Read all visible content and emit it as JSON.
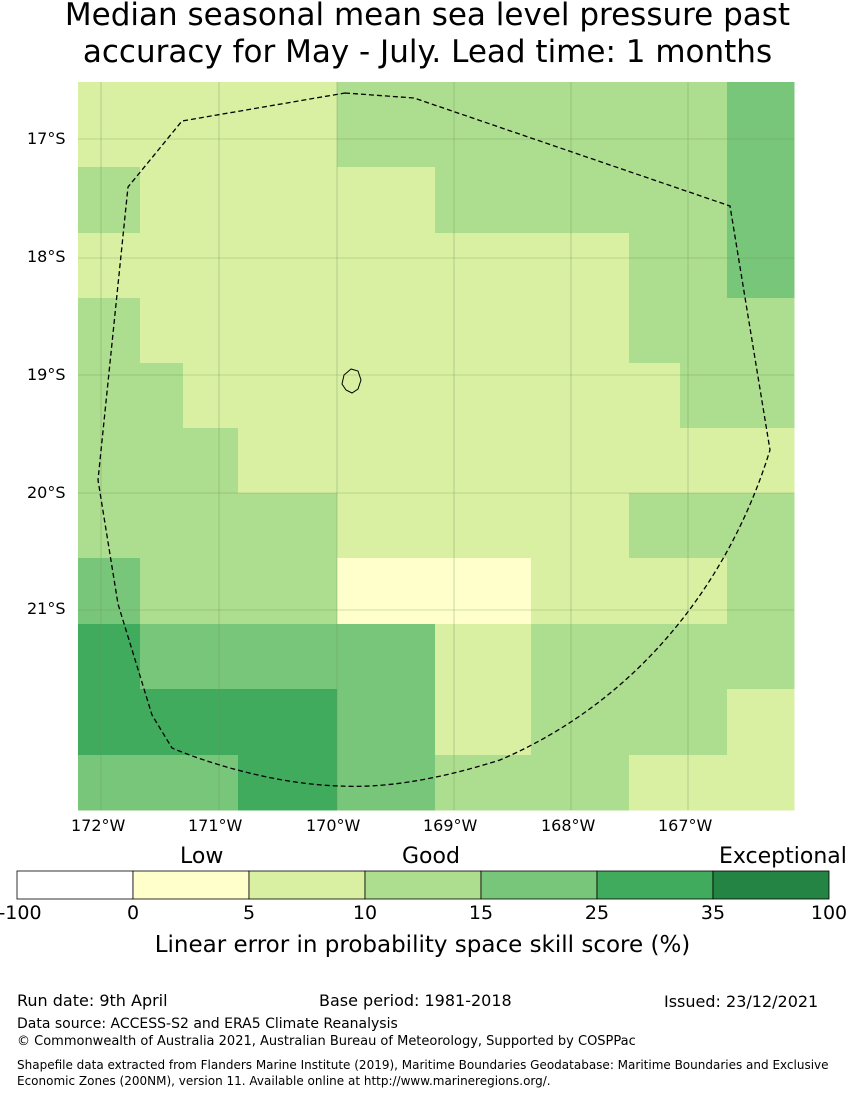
{
  "title": {
    "line1": "Median seasonal mean sea level pressure past",
    "line2": "accuracy for May - July. Lead time: 1 months"
  },
  "map": {
    "lat_labels": [
      "17°S",
      "18°S",
      "19°S",
      "20°S",
      "21°S"
    ],
    "lon_labels": [
      "172°W",
      "171°W",
      "170°W",
      "169°W",
      "168°W",
      "167°W"
    ],
    "lon_range": [
      -172.2,
      -166.1
    ],
    "lat_range": [
      -16.5,
      -22.7
    ],
    "grid_cells_skill_class": [
      [
        2,
        2,
        2,
        2,
        3,
        3,
        3,
        3,
        3,
        3,
        4
      ],
      [
        2,
        2,
        2,
        2,
        3,
        3,
        3,
        3,
        3,
        3,
        4
      ],
      [
        3,
        2,
        2,
        2,
        2,
        2,
        3,
        3,
        3,
        3,
        4
      ],
      [
        2,
        2,
        2,
        2,
        2,
        2,
        2,
        2,
        3,
        3,
        4
      ],
      [
        3,
        2,
        2,
        2,
        2,
        2,
        2,
        2,
        3,
        3,
        3
      ],
      [
        3,
        3,
        2,
        2,
        2,
        2,
        2,
        2,
        2,
        3,
        3
      ],
      [
        3,
        3,
        3,
        2,
        2,
        2,
        2,
        2,
        2,
        2,
        2
      ],
      [
        3,
        3,
        3,
        3,
        2,
        2,
        2,
        2,
        3,
        3,
        3
      ],
      [
        4,
        3,
        3,
        3,
        1,
        1,
        1,
        2,
        2,
        2,
        3
      ],
      [
        5,
        4,
        4,
        4,
        4,
        4,
        2,
        3,
        3,
        3,
        3
      ],
      [
        5,
        5,
        5,
        5,
        4,
        4,
        2,
        3,
        3,
        3,
        2
      ],
      [
        4,
        4,
        4,
        5,
        4,
        4,
        3,
        3,
        2,
        2,
        2
      ]
    ],
    "eez_boundary": "dashed",
    "island": "island-outline"
  },
  "colorbar": {
    "colors": [
      "#ffffff",
      "#ffffcc",
      "#d9f0a3",
      "#addd8e",
      "#78c679",
      "#41ab5d",
      "#238443"
    ],
    "tick_labels": [
      "-100",
      "0",
      "5",
      "10",
      "15",
      "25",
      "35",
      "100"
    ],
    "category_labels": [
      "Low",
      "Good",
      "Exceptional"
    ],
    "title": "Linear error in probability space skill score (%)"
  },
  "footer": {
    "run_date": "Run date: 9th April",
    "base_period": "Base period: 1981-2018",
    "issued": "Issued: 23/12/2021",
    "data_source": "Data source: ACCESS-S2 and ERA5 Climate Reanalysis",
    "copyright": "© Commonwealth of Australia 2021, Australian Bureau of Meteorology, Supported by COSPPac",
    "shapefile": "Shapefile data extracted from Flanders Marine Institute (2019), Maritime Boundaries Geodatabase: Maritime Boundaries and Exclusive Economic Zones (200NM), version 11. Available online at http://www.marineregions.org/."
  }
}
